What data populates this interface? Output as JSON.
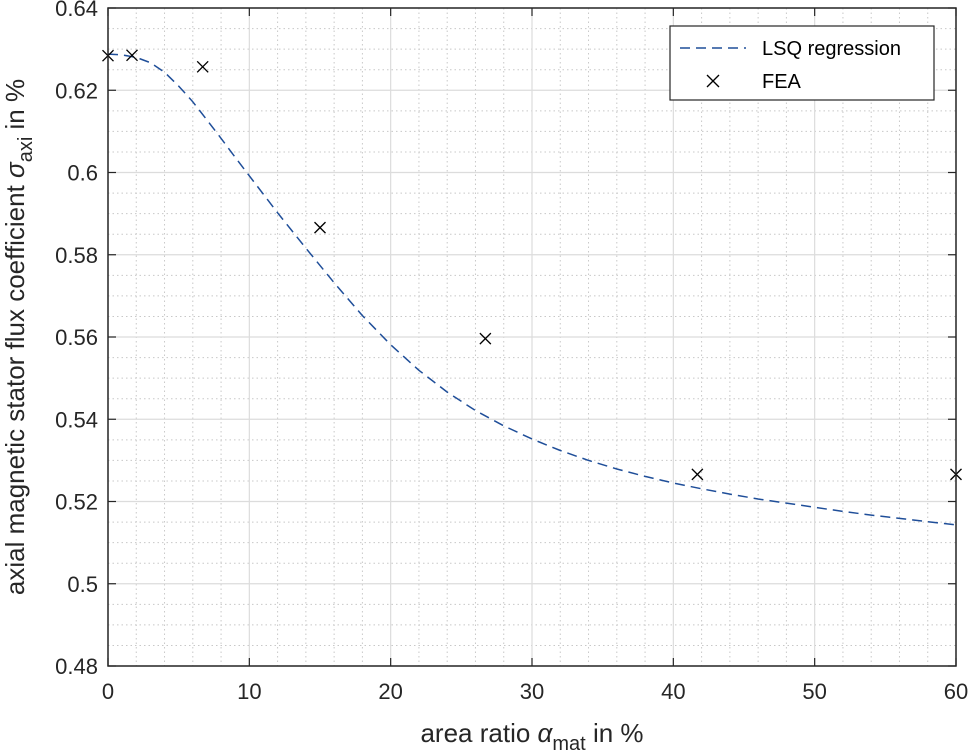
{
  "chart_data": {
    "type": "line",
    "xlabel": {
      "prefix": "area ratio ",
      "symbol": "α",
      "subscript": "mat",
      "suffix": " in %"
    },
    "ylabel": {
      "prefix": "axial magnetic stator flux coefficient ",
      "symbol": "σ",
      "subscript": "axi",
      "suffix": " in %"
    },
    "xlim": [
      0,
      60
    ],
    "ylim": [
      0.48,
      0.64
    ],
    "xticks": [
      0,
      10,
      20,
      30,
      40,
      50,
      60
    ],
    "xtick_labels": [
      "0",
      "10",
      "20",
      "30",
      "40",
      "50",
      "60"
    ],
    "yticks": [
      0.48,
      0.5,
      0.52,
      0.54,
      0.56,
      0.58,
      0.6,
      0.62,
      0.64
    ],
    "ytick_labels": [
      "0.48",
      "0.5",
      "0.52",
      "0.54",
      "0.56",
      "0.58",
      "0.6",
      "0.62",
      "0.64"
    ],
    "grid": true,
    "minor_grid": true,
    "legend_position": "top-right",
    "series": [
      {
        "name": "LSQ regression",
        "style": "dashed",
        "color": "#1f4e99",
        "x": [
          0,
          1,
          2,
          3,
          4,
          5,
          6,
          7,
          8,
          9,
          10,
          12,
          14,
          16,
          18,
          20,
          22,
          24,
          26,
          28,
          30,
          32,
          34,
          36,
          38,
          40,
          42,
          44,
          46,
          48,
          50,
          52,
          54,
          56,
          58,
          60
        ],
        "y": [
          0.6288,
          0.6286,
          0.628,
          0.6267,
          0.6244,
          0.621,
          0.6172,
          0.6128,
          0.6083,
          0.6037,
          0.5992,
          0.5902,
          0.5816,
          0.5732,
          0.5652,
          0.5581,
          0.5519,
          0.5466,
          0.5421,
          0.5384,
          0.5352,
          0.5324,
          0.53,
          0.5279,
          0.5261,
          0.5245,
          0.5231,
          0.5218,
          0.5206,
          0.5196,
          0.5186,
          0.5176,
          0.5167,
          0.5159,
          0.5151,
          0.5143
        ]
      },
      {
        "name": "FEA",
        "style": "markers-x",
        "color": "#000000",
        "x": [
          0.0,
          1.7,
          6.7,
          15.0,
          26.7,
          41.7,
          60.0
        ],
        "y": [
          0.6284,
          0.6285,
          0.6257,
          0.5866,
          0.5596,
          0.5266,
          0.5266
        ]
      }
    ]
  }
}
